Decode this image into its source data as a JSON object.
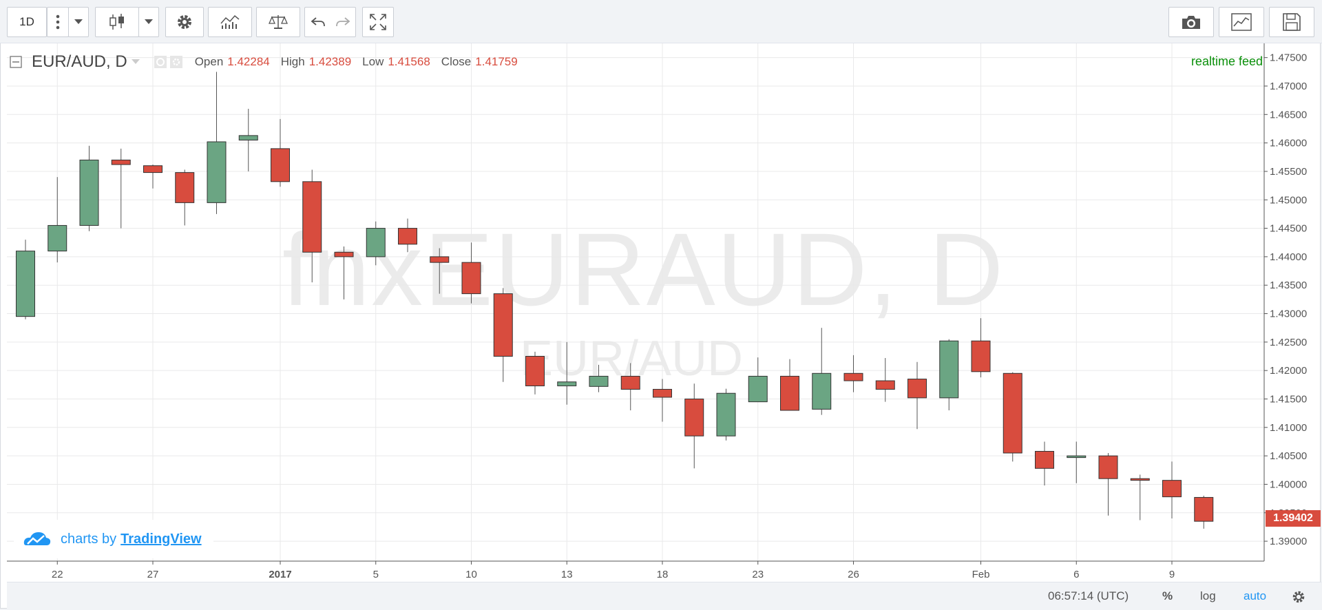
{
  "toolbar": {
    "interval": "1D",
    "icons": [
      "more-vertical-icon",
      "dropdown-icon",
      "candlestick-icon",
      "dropdown-icon",
      "gear-icon",
      "indicators-icon",
      "compare-icon",
      "undo-icon",
      "redo-icon",
      "fullscreen-icon",
      "camera-icon",
      "chart-style-icon",
      "save-icon"
    ]
  },
  "legend": {
    "symbol": "EUR/AUD, D",
    "open_label": "Open",
    "open": "1.42284",
    "high_label": "High",
    "high": "1.42389",
    "low_label": "Low",
    "low": "1.41568",
    "close_label": "Close",
    "close": "1.41759",
    "feed": "realtime feed"
  },
  "watermark": {
    "big": "fnxEURAUD, D",
    "small": "EUR/AUD"
  },
  "branding": {
    "text": "charts by",
    "link": "TradingView"
  },
  "current_price_label": "1.39402",
  "bottom_bar": {
    "time": "06:57:14 (UTC)",
    "percent": "%",
    "log": "log",
    "auto": "auto"
  },
  "colors": {
    "up": "#6ba583",
    "down": "#d84c3e",
    "accent": "#2196f3",
    "feed": "#0a8f0a"
  },
  "chart_data": {
    "type": "candlestick",
    "title": "EUR/AUD, D",
    "ylim": [
      1.3865,
      1.4775
    ],
    "y_ticks": [
      "1.39000",
      "1.39500",
      "1.40000",
      "1.40500",
      "1.41000",
      "1.41500",
      "1.42000",
      "1.42500",
      "1.43000",
      "1.43500",
      "1.44000",
      "1.44500",
      "1.45000",
      "1.45500",
      "1.46000",
      "1.46500",
      "1.47000",
      "1.47500"
    ],
    "x_ticks": [
      {
        "index": 1,
        "label": "22"
      },
      {
        "index": 4,
        "label": "27"
      },
      {
        "index": 8,
        "label": "2017",
        "bold": true
      },
      {
        "index": 11,
        "label": "5"
      },
      {
        "index": 14,
        "label": "10"
      },
      {
        "index": 17,
        "label": "13"
      },
      {
        "index": 20,
        "label": "18"
      },
      {
        "index": 23,
        "label": "23"
      },
      {
        "index": 26,
        "label": "26"
      },
      {
        "index": 30,
        "label": "Feb"
      },
      {
        "index": 33,
        "label": "6"
      },
      {
        "index": 36,
        "label": "9"
      }
    ],
    "grid": true,
    "candles": [
      {
        "o": 1.4295,
        "h": 1.443,
        "l": 1.429,
        "c": 1.441
      },
      {
        "o": 1.441,
        "h": 1.454,
        "l": 1.439,
        "c": 1.4455
      },
      {
        "o": 1.4455,
        "h": 1.4595,
        "l": 1.4445,
        "c": 1.457
      },
      {
        "o": 1.457,
        "h": 1.459,
        "l": 1.445,
        "c": 1.4562
      },
      {
        "o": 1.456,
        "h": 1.4562,
        "l": 1.452,
        "c": 1.4548
      },
      {
        "o": 1.4548,
        "h": 1.4553,
        "l": 1.4455,
        "c": 1.4495
      },
      {
        "o": 1.4495,
        "h": 1.4725,
        "l": 1.4475,
        "c": 1.4602
      },
      {
        "o": 1.4605,
        "h": 1.466,
        "l": 1.455,
        "c": 1.4613
      },
      {
        "o": 1.459,
        "h": 1.4642,
        "l": 1.4523,
        "c": 1.4532
      },
      {
        "o": 1.4532,
        "h": 1.4553,
        "l": 1.4355,
        "c": 1.4408
      },
      {
        "o": 1.4408,
        "h": 1.4418,
        "l": 1.4325,
        "c": 1.44
      },
      {
        "o": 1.44,
        "h": 1.4462,
        "l": 1.4385,
        "c": 1.445
      },
      {
        "o": 1.445,
        "h": 1.4467,
        "l": 1.4408,
        "c": 1.4422
      },
      {
        "o": 1.44,
        "h": 1.4415,
        "l": 1.4335,
        "c": 1.439
      },
      {
        "o": 1.439,
        "h": 1.4425,
        "l": 1.4318,
        "c": 1.4335
      },
      {
        "o": 1.4335,
        "h": 1.4345,
        "l": 1.418,
        "c": 1.4225
      },
      {
        "o": 1.4225,
        "h": 1.4233,
        "l": 1.4158,
        "c": 1.4173
      },
      {
        "o": 1.4173,
        "h": 1.425,
        "l": 1.414,
        "c": 1.418
      },
      {
        "o": 1.4172,
        "h": 1.421,
        "l": 1.4162,
        "c": 1.419
      },
      {
        "o": 1.419,
        "h": 1.4213,
        "l": 1.413,
        "c": 1.4167
      },
      {
        "o": 1.4167,
        "h": 1.4185,
        "l": 1.411,
        "c": 1.4153
      },
      {
        "o": 1.415,
        "h": 1.4177,
        "l": 1.4028,
        "c": 1.4085
      },
      {
        "o": 1.4085,
        "h": 1.4168,
        "l": 1.4077,
        "c": 1.416
      },
      {
        "o": 1.4145,
        "h": 1.4223,
        "l": 1.4145,
        "c": 1.419
      },
      {
        "o": 1.419,
        "h": 1.422,
        "l": 1.413,
        "c": 1.413
      },
      {
        "o": 1.4132,
        "h": 1.4275,
        "l": 1.4122,
        "c": 1.4195
      },
      {
        "o": 1.4195,
        "h": 1.4227,
        "l": 1.4162,
        "c": 1.4182
      },
      {
        "o": 1.4182,
        "h": 1.4222,
        "l": 1.4145,
        "c": 1.4167
      },
      {
        "o": 1.4185,
        "h": 1.4215,
        "l": 1.4097,
        "c": 1.4152
      },
      {
        "o": 1.4152,
        "h": 1.4255,
        "l": 1.413,
        "c": 1.4252
      },
      {
        "o": 1.4252,
        "h": 1.4292,
        "l": 1.4188,
        "c": 1.4198
      },
      {
        "o": 1.4195,
        "h": 1.4197,
        "l": 1.404,
        "c": 1.4055
      },
      {
        "o": 1.4058,
        "h": 1.4075,
        "l": 1.3998,
        "c": 1.4028
      },
      {
        "o": 1.4047,
        "h": 1.4075,
        "l": 1.4002,
        "c": 1.405
      },
      {
        "o": 1.405,
        "h": 1.4055,
        "l": 1.3945,
        "c": 1.401
      },
      {
        "o": 1.401,
        "h": 1.4017,
        "l": 1.3937,
        "c": 1.4007
      },
      {
        "o": 1.4007,
        "h": 1.404,
        "l": 1.394,
        "c": 1.3978
      },
      {
        "o": 1.3977,
        "h": 1.398,
        "l": 1.3922,
        "c": 1.3935
      }
    ]
  }
}
